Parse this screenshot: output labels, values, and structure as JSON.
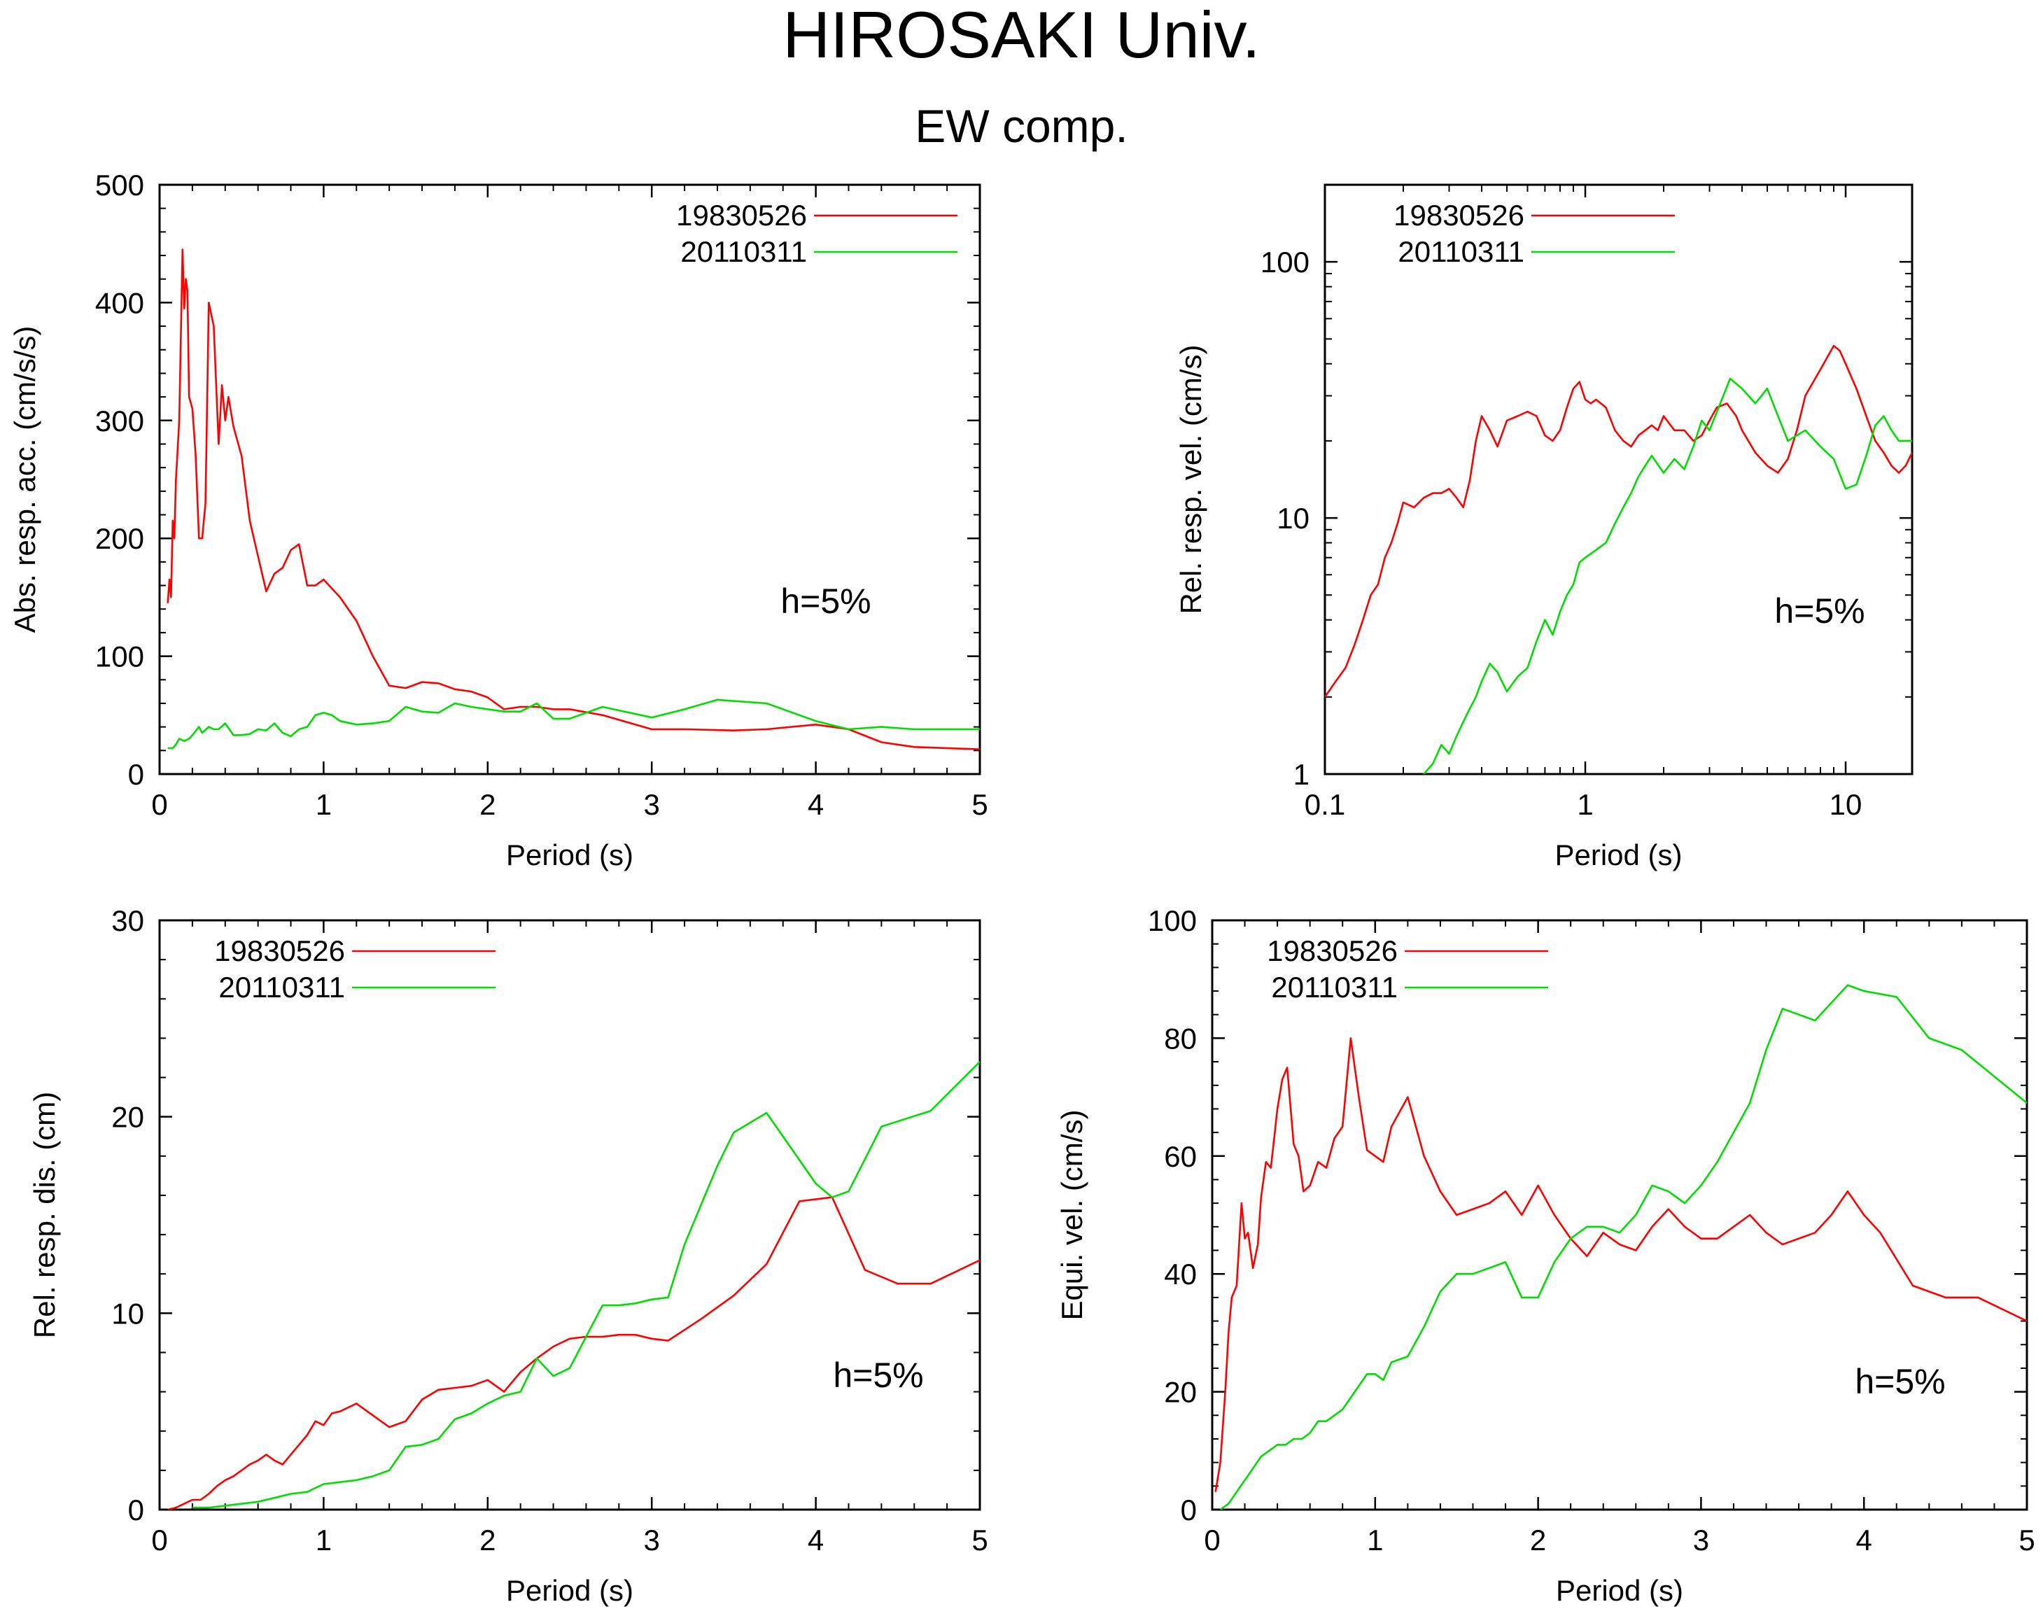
{
  "page": {
    "title": "HIROSAKI Univ.",
    "subtitle": "EW comp."
  },
  "colors": {
    "series_1983": "#ff0000",
    "series_2011": "#00dd00",
    "axis": "#000000"
  },
  "chart_data": [
    {
      "type": "line",
      "xlabel": "Period (s)",
      "ylabel": "Abs. resp. acc. (cm/s/s)",
      "xscale": "linear",
      "yscale": "linear",
      "xlim": [
        0,
        5
      ],
      "ylim": [
        0,
        500
      ],
      "xticks": [
        0,
        1,
        2,
        3,
        4,
        5
      ],
      "xticklabels": [
        "0",
        "1",
        "2",
        "3",
        "4",
        "5"
      ],
      "yticks": [
        0,
        100,
        200,
        300,
        400,
        500
      ],
      "yticklabels": [
        "0",
        "100",
        "200",
        "300",
        "400",
        "500"
      ],
      "annotation": "h=5%",
      "legend_position": "top-right",
      "series": [
        {
          "name": "19830526",
          "color": "#ff0000",
          "x": [
            0.05,
            0.06,
            0.07,
            0.08,
            0.09,
            0.1,
            0.12,
            0.14,
            0.15,
            0.16,
            0.17,
            0.18,
            0.2,
            0.22,
            0.24,
            0.26,
            0.28,
            0.3,
            0.33,
            0.36,
            0.38,
            0.4,
            0.42,
            0.45,
            0.48,
            0.5,
            0.55,
            0.6,
            0.65,
            0.7,
            0.75,
            0.8,
            0.85,
            0.9,
            0.95,
            1.0,
            1.1,
            1.2,
            1.3,
            1.4,
            1.5,
            1.6,
            1.7,
            1.8,
            1.9,
            2.0,
            2.1,
            2.2,
            2.3,
            2.4,
            2.5,
            2.7,
            3.0,
            3.2,
            3.5,
            3.7,
            4.0,
            4.2,
            4.4,
            4.6,
            5.0
          ],
          "y": [
            145,
            165,
            150,
            215,
            200,
            250,
            300,
            445,
            395,
            420,
            410,
            320,
            310,
            270,
            200,
            200,
            230,
            400,
            380,
            280,
            330,
            300,
            320,
            295,
            280,
            270,
            215,
            185,
            155,
            170,
            175,
            190,
            195,
            160,
            160,
            165,
            150,
            130,
            100,
            75,
            73,
            78,
            77,
            72,
            70,
            65,
            55,
            57,
            57,
            55,
            55,
            50,
            38,
            38,
            37,
            38,
            42,
            38,
            27,
            23,
            21
          ],
          "xs_note": ""
        },
        {
          "name": "20110311",
          "color": "#00dd00",
          "x": [
            0.05,
            0.08,
            0.1,
            0.12,
            0.15,
            0.18,
            0.2,
            0.24,
            0.26,
            0.3,
            0.33,
            0.36,
            0.4,
            0.45,
            0.5,
            0.55,
            0.6,
            0.65,
            0.7,
            0.75,
            0.8,
            0.85,
            0.9,
            0.95,
            1.0,
            1.05,
            1.1,
            1.2,
            1.3,
            1.4,
            1.5,
            1.6,
            1.7,
            1.8,
            1.9,
            2.0,
            2.1,
            2.2,
            2.3,
            2.4,
            2.5,
            2.7,
            3.0,
            3.2,
            3.4,
            3.7,
            4.0,
            4.2,
            4.4,
            4.6,
            5.0
          ],
          "y": [
            22,
            22,
            25,
            30,
            28,
            30,
            33,
            40,
            35,
            40,
            38,
            38,
            43,
            33,
            33,
            34,
            38,
            37,
            43,
            35,
            32,
            38,
            40,
            50,
            52,
            50,
            45,
            42,
            43,
            45,
            57,
            53,
            52,
            60,
            57,
            55,
            53,
            53,
            60,
            47,
            47,
            57,
            48,
            55,
            63,
            60,
            45,
            38,
            40,
            38,
            38
          ]
        }
      ]
    },
    {
      "type": "line",
      "xlabel": "Period (s)",
      "ylabel": "Rel. resp. vel. (cm/s)",
      "xscale": "log",
      "yscale": "log",
      "xlim": [
        0.1,
        18
      ],
      "ylim": [
        1,
        200
      ],
      "xticks": [
        0.1,
        1,
        10
      ],
      "xticklabels": [
        "0.1",
        "1",
        "10"
      ],
      "yticks": [
        1,
        10,
        100
      ],
      "yticklabels": [
        "1",
        "10",
        "100"
      ],
      "annotation": "h=5%",
      "legend_position": "top-left",
      "series": [
        {
          "name": "19830526",
          "color": "#ff0000",
          "x": [
            0.1,
            0.11,
            0.12,
            0.13,
            0.14,
            0.15,
            0.16,
            0.17,
            0.18,
            0.19,
            0.2,
            0.22,
            0.24,
            0.26,
            0.28,
            0.3,
            0.32,
            0.34,
            0.36,
            0.38,
            0.4,
            0.43,
            0.46,
            0.5,
            0.55,
            0.6,
            0.65,
            0.7,
            0.75,
            0.8,
            0.85,
            0.9,
            0.95,
            1.0,
            1.05,
            1.1,
            1.2,
            1.3,
            1.4,
            1.5,
            1.6,
            1.7,
            1.8,
            1.9,
            2.0,
            2.2,
            2.4,
            2.6,
            2.8,
            3.0,
            3.2,
            3.5,
            3.8,
            4.0,
            4.5,
            5.0,
            5.5,
            6.0,
            6.5,
            7.0,
            8.0,
            9.0,
            9.5,
            10.0,
            11.0,
            12.0,
            13.0,
            14.0,
            15.0,
            16.0,
            17.0,
            18.0
          ],
          "y": [
            2.0,
            2.3,
            2.6,
            3.2,
            4.0,
            5.0,
            5.5,
            7.0,
            8.0,
            9.5,
            11.5,
            11.0,
            12.0,
            12.5,
            12.5,
            13.0,
            12.0,
            11.0,
            14.0,
            20.0,
            25.0,
            22.0,
            19.0,
            24.0,
            25.0,
            26.0,
            25.0,
            21.0,
            20.0,
            22.0,
            27.0,
            32.0,
            34.0,
            29.0,
            28.0,
            29.0,
            27.0,
            22.0,
            20.0,
            19.0,
            21.0,
            22.0,
            23.0,
            22.0,
            25.0,
            22.0,
            22.0,
            20.0,
            21.0,
            24.0,
            27.0,
            28.0,
            25.0,
            22.0,
            18.0,
            16.0,
            15.0,
            17.0,
            22.0,
            30.0,
            38.0,
            47.0,
            45.0,
            40.0,
            32.0,
            25.0,
            20.0,
            18.0,
            16.0,
            15.0,
            16.0,
            18.0
          ]
        },
        {
          "name": "20110311",
          "color": "#00dd00",
          "x": [
            0.24,
            0.26,
            0.28,
            0.3,
            0.32,
            0.34,
            0.36,
            0.38,
            0.4,
            0.43,
            0.46,
            0.5,
            0.55,
            0.6,
            0.65,
            0.7,
            0.75,
            0.8,
            0.85,
            0.9,
            0.95,
            1.0,
            1.1,
            1.2,
            1.3,
            1.4,
            1.5,
            1.6,
            1.7,
            1.8,
            2.0,
            2.2,
            2.4,
            2.6,
            2.8,
            3.0,
            3.3,
            3.6,
            4.0,
            4.5,
            5.0,
            5.5,
            6.0,
            7.0,
            8.0,
            9.0,
            10.0,
            11.0,
            12.0,
            13.0,
            14.0,
            15.0,
            16.0,
            18.0
          ],
          "y": [
            1.0,
            1.1,
            1.3,
            1.2,
            1.4,
            1.6,
            1.8,
            2.0,
            2.3,
            2.7,
            2.5,
            2.1,
            2.4,
            2.6,
            3.3,
            4.0,
            3.5,
            4.3,
            5.0,
            5.5,
            6.7,
            7.0,
            7.5,
            8.0,
            9.5,
            11.0,
            12.5,
            14.5,
            16.0,
            17.5,
            15.0,
            17.0,
            15.5,
            19.0,
            24.0,
            22.0,
            28.0,
            35.0,
            32.0,
            28.0,
            32.0,
            25.0,
            20.0,
            22.0,
            19.0,
            17.0,
            13.0,
            13.5,
            17.5,
            23.0,
            25.0,
            22.0,
            20.0,
            20.0
          ]
        }
      ]
    },
    {
      "type": "line",
      "xlabel": "Period (s)",
      "ylabel": "Rel. resp. dis. (cm)",
      "xscale": "linear",
      "yscale": "linear",
      "xlim": [
        0,
        5
      ],
      "ylim": [
        0,
        30
      ],
      "xticks": [
        0,
        1,
        2,
        3,
        4,
        5
      ],
      "xticklabels": [
        "0",
        "1",
        "2",
        "3",
        "4",
        "5"
      ],
      "yticks": [
        0,
        10,
        20,
        30
      ],
      "yticklabels": [
        "0",
        "10",
        "20",
        "30"
      ],
      "annotation": "h=5%",
      "legend_position": "top-left",
      "series": [
        {
          "name": "19830526",
          "color": "#ff0000",
          "x": [
            0.05,
            0.1,
            0.15,
            0.2,
            0.25,
            0.3,
            0.35,
            0.4,
            0.45,
            0.5,
            0.55,
            0.6,
            0.65,
            0.7,
            0.75,
            0.8,
            0.85,
            0.9,
            0.95,
            1.0,
            1.05,
            1.1,
            1.2,
            1.3,
            1.4,
            1.5,
            1.6,
            1.7,
            1.8,
            1.9,
            2.0,
            2.1,
            2.2,
            2.3,
            2.4,
            2.5,
            2.6,
            2.7,
            2.8,
            2.9,
            3.0,
            3.1,
            3.3,
            3.5,
            3.7,
            3.9,
            4.1,
            4.3,
            4.5,
            4.7,
            5.0
          ],
          "y": [
            0.0,
            0.1,
            0.3,
            0.5,
            0.5,
            0.8,
            1.2,
            1.5,
            1.7,
            2.0,
            2.3,
            2.5,
            2.8,
            2.5,
            2.3,
            2.8,
            3.3,
            3.8,
            4.5,
            4.3,
            4.9,
            5.0,
            5.4,
            4.8,
            4.2,
            4.5,
            5.6,
            6.1,
            6.2,
            6.3,
            6.6,
            6.0,
            7.0,
            7.7,
            8.3,
            8.7,
            8.8,
            8.8,
            8.9,
            8.9,
            8.7,
            8.6,
            9.7,
            10.9,
            12.5,
            15.7,
            15.9,
            12.2,
            11.5,
            11.5,
            12.7
          ]
        },
        {
          "name": "20110311",
          "color": "#00dd00",
          "x": [
            0.2,
            0.3,
            0.4,
            0.5,
            0.6,
            0.7,
            0.8,
            0.9,
            1.0,
            1.1,
            1.2,
            1.3,
            1.4,
            1.5,
            1.6,
            1.7,
            1.8,
            1.9,
            2.0,
            2.1,
            2.2,
            2.3,
            2.4,
            2.5,
            2.6,
            2.7,
            2.8,
            2.9,
            3.0,
            3.1,
            3.2,
            3.3,
            3.4,
            3.5,
            3.6,
            3.7,
            3.8,
            3.9,
            4.0,
            4.1,
            4.2,
            4.4,
            4.7,
            5.0
          ],
          "y": [
            0.1,
            0.1,
            0.2,
            0.3,
            0.4,
            0.6,
            0.8,
            0.9,
            1.3,
            1.4,
            1.5,
            1.7,
            2.0,
            3.2,
            3.3,
            3.6,
            4.6,
            4.9,
            5.4,
            5.8,
            6.0,
            7.7,
            6.8,
            7.2,
            8.8,
            10.4,
            10.4,
            10.5,
            10.7,
            10.8,
            13.5,
            15.5,
            17.5,
            19.2,
            19.7,
            20.2,
            19.0,
            17.8,
            16.6,
            15.9,
            16.2,
            19.5,
            20.3,
            22.8
          ]
        }
      ]
    },
    {
      "type": "line",
      "xlabel": "Period (s)",
      "ylabel": "Equi. vel. (cm/s)",
      "xscale": "linear",
      "yscale": "linear",
      "xlim": [
        0,
        5
      ],
      "ylim": [
        0,
        100
      ],
      "xticks": [
        0,
        1,
        2,
        3,
        4,
        5
      ],
      "xticklabels": [
        "0",
        "1",
        "2",
        "3",
        "4",
        "5"
      ],
      "yticks": [
        0,
        20,
        40,
        60,
        80,
        100
      ],
      "yticklabels": [
        "0",
        "20",
        "40",
        "60",
        "80",
        "100"
      ],
      "annotation": "h=5%",
      "legend_position": "top-left",
      "series": [
        {
          "name": "19830526",
          "color": "#ff0000",
          "x": [
            0.02,
            0.05,
            0.08,
            0.1,
            0.12,
            0.15,
            0.18,
            0.2,
            0.22,
            0.25,
            0.28,
            0.3,
            0.33,
            0.36,
            0.38,
            0.4,
            0.43,
            0.46,
            0.5,
            0.53,
            0.56,
            0.6,
            0.65,
            0.7,
            0.75,
            0.8,
            0.85,
            0.9,
            0.95,
            1.0,
            1.05,
            1.1,
            1.2,
            1.3,
            1.4,
            1.5,
            1.6,
            1.7,
            1.8,
            1.9,
            2.0,
            2.1,
            2.2,
            2.3,
            2.4,
            2.5,
            2.6,
            2.7,
            2.8,
            2.9,
            3.0,
            3.1,
            3.2,
            3.3,
            3.4,
            3.5,
            3.6,
            3.7,
            3.8,
            3.9,
            4.0,
            4.1,
            4.3,
            4.5,
            4.7,
            5.0
          ],
          "y": [
            3,
            8,
            20,
            30,
            36,
            38,
            52,
            46,
            47,
            41,
            45,
            53,
            59,
            58,
            63,
            68,
            73,
            75,
            62,
            60,
            54,
            55,
            59,
            58,
            63,
            65,
            80,
            70,
            61,
            60,
            59,
            65,
            70,
            60,
            54,
            50,
            51,
            52,
            54,
            50,
            55,
            50,
            46,
            43,
            47,
            45,
            44,
            48,
            51,
            48,
            46,
            46,
            48,
            50,
            47,
            45,
            46,
            47,
            50,
            54,
            50,
            47,
            38,
            36,
            36,
            32
          ]
        },
        {
          "name": "20110311",
          "color": "#00dd00",
          "x": [
            0.05,
            0.1,
            0.15,
            0.2,
            0.25,
            0.3,
            0.35,
            0.4,
            0.45,
            0.5,
            0.55,
            0.6,
            0.65,
            0.7,
            0.75,
            0.8,
            0.85,
            0.9,
            0.95,
            1.0,
            1.05,
            1.1,
            1.2,
            1.3,
            1.4,
            1.5,
            1.6,
            1.7,
            1.8,
            1.9,
            2.0,
            2.1,
            2.2,
            2.3,
            2.4,
            2.5,
            2.6,
            2.7,
            2.8,
            2.9,
            3.0,
            3.1,
            3.2,
            3.3,
            3.4,
            3.5,
            3.6,
            3.7,
            3.8,
            3.9,
            4.0,
            4.2,
            4.4,
            4.6,
            5.0
          ],
          "y": [
            0,
            1,
            3,
            5,
            7,
            9,
            10,
            11,
            11,
            12,
            12,
            13,
            15,
            15,
            16,
            17,
            19,
            21,
            23,
            23,
            22,
            25,
            26,
            31,
            37,
            40,
            40,
            41,
            42,
            36,
            36,
            42,
            46,
            48,
            48,
            47,
            50,
            55,
            54,
            52,
            55,
            59,
            64,
            69,
            78,
            85,
            84,
            83,
            86,
            89,
            88,
            87,
            80,
            78,
            69
          ]
        }
      ]
    }
  ],
  "legend_entries": [
    "19830526",
    "20110311"
  ]
}
